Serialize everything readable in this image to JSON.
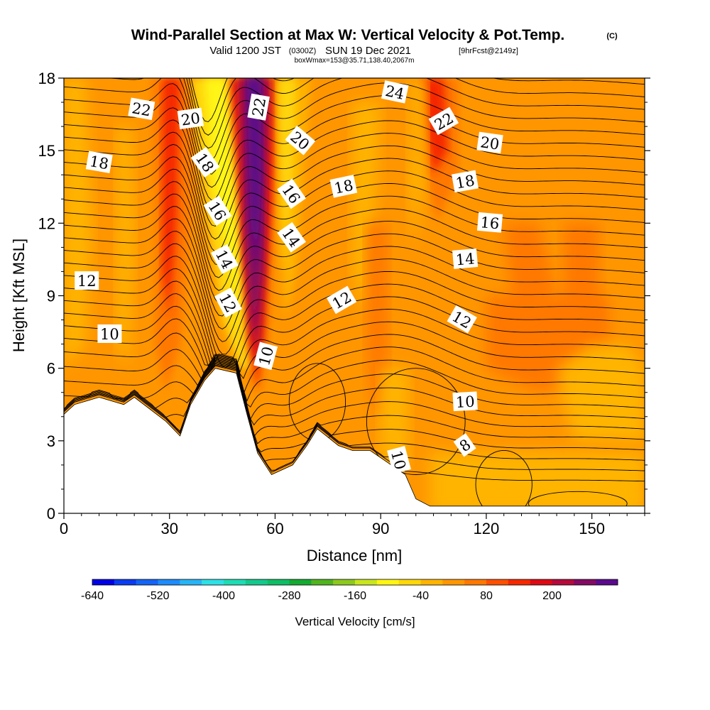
{
  "header": {
    "title": "Wind-Parallel Section at Max W: Vertical Velocity & Pot.Temp.",
    "title_tag": "(C)",
    "valid_prefix": "Valid 1200 JST",
    "valid_utc": "(0300Z)",
    "valid_date": "SUN 19 Dec 2021",
    "forecast": "[9hrFcst@2149z]",
    "box": "boxWmax=153@35.71,138.40,2067m"
  },
  "chart_data": {
    "type": "heatmap",
    "xlabel": "Distance [nm]",
    "ylabel": "Height [Kft MSL]",
    "xlim": [
      0,
      165
    ],
    "ylim": [
      0,
      18
    ],
    "xticks": [
      0,
      30,
      60,
      90,
      120,
      150
    ],
    "yticks": [
      0,
      3,
      6,
      9,
      12,
      15,
      18
    ],
    "colorbar": {
      "label": "Vertical Velocity [cm/s]",
      "ticks": [
        -640,
        -520,
        -400,
        -280,
        -160,
        -40,
        80,
        200
      ],
      "levels": [
        -640,
        -600,
        -560,
        -520,
        -480,
        -440,
        -400,
        -360,
        -320,
        -280,
        -240,
        -200,
        -160,
        -120,
        -80,
        -40,
        0,
        40,
        80,
        120,
        160,
        200,
        240,
        280
      ],
      "colors": [
        "#0000e6",
        "#0a3cf0",
        "#1464f5",
        "#1e8cfa",
        "#28b4f5",
        "#2de1e6",
        "#1edcb4",
        "#14c88c",
        "#0fbe64",
        "#14aa32",
        "#50b41e",
        "#8cc81e",
        "#c8e61e",
        "#fff514",
        "#ffd70a",
        "#ffb400",
        "#ff9600",
        "#ff7800",
        "#ff5000",
        "#f52800",
        "#dc0a14",
        "#b40a3c",
        "#820a64",
        "#5a0a8c"
      ]
    },
    "terrain_kft": [
      [
        0,
        4.1
      ],
      [
        3,
        4.5
      ],
      [
        10,
        4.8
      ],
      [
        17,
        4.5
      ],
      [
        20,
        4.8
      ],
      [
        29,
        3.8
      ],
      [
        33,
        3.2
      ],
      [
        36,
        4.5
      ],
      [
        40,
        5.5
      ],
      [
        43,
        6.0
      ],
      [
        49,
        5.8
      ],
      [
        52,
        4.1
      ],
      [
        55,
        2.5
      ],
      [
        59,
        1.6
      ],
      [
        65,
        2.0
      ],
      [
        69,
        2.8
      ],
      [
        72,
        3.5
      ],
      [
        78,
        2.8
      ],
      [
        82,
        2.6
      ],
      [
        87,
        2.6
      ],
      [
        93,
        2.0
      ],
      [
        97,
        1.6
      ],
      [
        100,
        0.6
      ],
      [
        104,
        0.3
      ],
      [
        109,
        0.3
      ],
      [
        165,
        0.3
      ]
    ],
    "theta_contour_labels": [
      {
        "value": "22",
        "x": 22,
        "y": 16.7,
        "angle": 10
      },
      {
        "value": "20",
        "x": 36,
        "y": 16.3,
        "angle": -8
      },
      {
        "value": "18",
        "x": 10,
        "y": 14.5,
        "angle": 10
      },
      {
        "value": "18",
        "x": 40,
        "y": 14.5,
        "angle": 55
      },
      {
        "value": "16",
        "x": 43.5,
        "y": 12.5,
        "angle": 58
      },
      {
        "value": "14",
        "x": 45.5,
        "y": 10.5,
        "angle": 62
      },
      {
        "value": "12",
        "x": 46.5,
        "y": 8.7,
        "angle": 62
      },
      {
        "value": "10",
        "x": 57.5,
        "y": 6.5,
        "angle": -75
      },
      {
        "value": "12",
        "x": 6.5,
        "y": 9.6,
        "angle": 0
      },
      {
        "value": "10",
        "x": 13,
        "y": 7.4,
        "angle": 0
      },
      {
        "value": "22",
        "x": 55.5,
        "y": 16.8,
        "angle": -80
      },
      {
        "value": "20",
        "x": 67,
        "y": 15.4,
        "angle": 40
      },
      {
        "value": "16",
        "x": 64.5,
        "y": 13.2,
        "angle": 55
      },
      {
        "value": "14",
        "x": 64.5,
        "y": 11.4,
        "angle": 55
      },
      {
        "value": "18",
        "x": 79.5,
        "y": 13.5,
        "angle": -12
      },
      {
        "value": "12",
        "x": 79,
        "y": 8.8,
        "angle": -30
      },
      {
        "value": "24",
        "x": 94,
        "y": 17.4,
        "angle": 12
      },
      {
        "value": "22",
        "x": 108,
        "y": 16.2,
        "angle": -30
      },
      {
        "value": "20",
        "x": 121,
        "y": 15.3,
        "angle": 8
      },
      {
        "value": "18",
        "x": 114,
        "y": 13.7,
        "angle": -10
      },
      {
        "value": "16",
        "x": 121,
        "y": 12.0,
        "angle": 5
      },
      {
        "value": "14",
        "x": 114,
        "y": 10.5,
        "angle": -5
      },
      {
        "value": "12",
        "x": 113,
        "y": 8.0,
        "angle": 30
      },
      {
        "value": "10",
        "x": 114,
        "y": 4.6,
        "angle": -3
      },
      {
        "value": "8",
        "x": 114,
        "y": 2.8,
        "angle": -35
      },
      {
        "value": "10",
        "x": 95,
        "y": 2.2,
        "angle": 75
      }
    ]
  }
}
